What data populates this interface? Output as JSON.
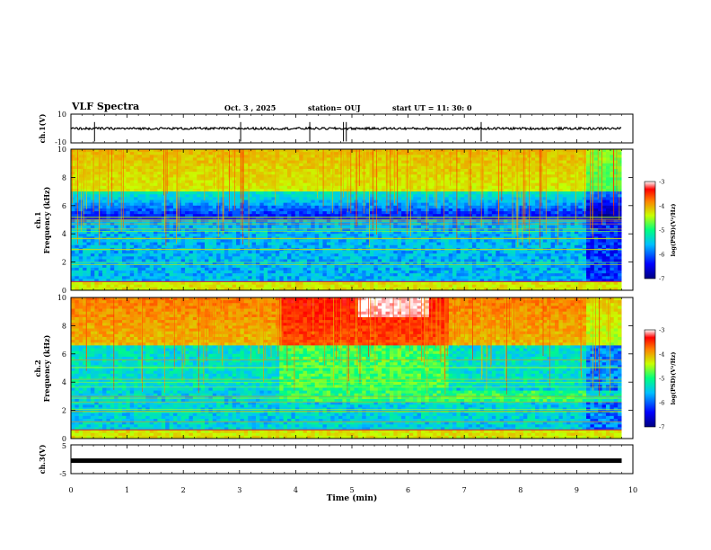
{
  "header": {
    "title": "VLF Spectra",
    "date": "Oct. 3 , 2025",
    "station": "station= OUJ",
    "start": "start UT = 11: 30: 0"
  },
  "chart_data": [
    {
      "type": "line",
      "panel": "ch1-waveform",
      "ylabel": "ch.1(V)",
      "ylim": [
        -10,
        10
      ],
      "yticks": [
        "10",
        "-10"
      ],
      "xlim": [
        0,
        10
      ],
      "series": [
        {
          "values_baseline": 0,
          "spikes_at_min": [
            0.42,
            3.02,
            4.25,
            4.85,
            4.9,
            7.3
          ]
        }
      ]
    },
    {
      "type": "heatmap",
      "panel": "ch1-spectrogram",
      "ylabel": "ch.1\nFrequency (kHz)",
      "ylim": [
        0,
        10
      ],
      "yticks": [
        "0",
        "2",
        "4",
        "6",
        "8",
        "10"
      ],
      "xlim": [
        0,
        10
      ],
      "colorbar": {
        "label": "log(PSD)(V²/Hz)",
        "ticks": [
          "-3",
          "-4",
          "-5",
          "-6",
          "-7"
        ],
        "range": [
          -7,
          -3
        ]
      }
    },
    {
      "type": "heatmap",
      "panel": "ch2-spectrogram",
      "ylabel": "ch.2\nFrequency (kHz)",
      "ylim": [
        0,
        10
      ],
      "yticks": [
        "0",
        "2",
        "4",
        "6",
        "8",
        "10"
      ],
      "xlim": [
        0,
        10
      ],
      "colorbar": {
        "label": "log(PSD)(V²/Hz)",
        "ticks": [
          "-3",
          "-4",
          "-5",
          "-6",
          "-7"
        ],
        "range": [
          -7,
          -3
        ]
      }
    },
    {
      "type": "line",
      "panel": "ch3-waveform",
      "ylabel": "ch.3(V)",
      "ylim": [
        -5,
        5
      ],
      "yticks": [
        "5",
        "0",
        "-5"
      ],
      "xlim": [
        0,
        10
      ],
      "series": [
        {
          "values_baseline": -0.5
        }
      ]
    }
  ],
  "xaxis": {
    "label": "Time (min)",
    "ticks": [
      "0",
      "1",
      "2",
      "3",
      "4",
      "5",
      "6",
      "7",
      "8",
      "9",
      "10"
    ]
  },
  "colors": {
    "scale": [
      "#000080",
      "#0000ff",
      "#00bfff",
      "#00ff80",
      "#c8ff00",
      "#ff8000",
      "#ff0000",
      "#ffffff"
    ]
  }
}
